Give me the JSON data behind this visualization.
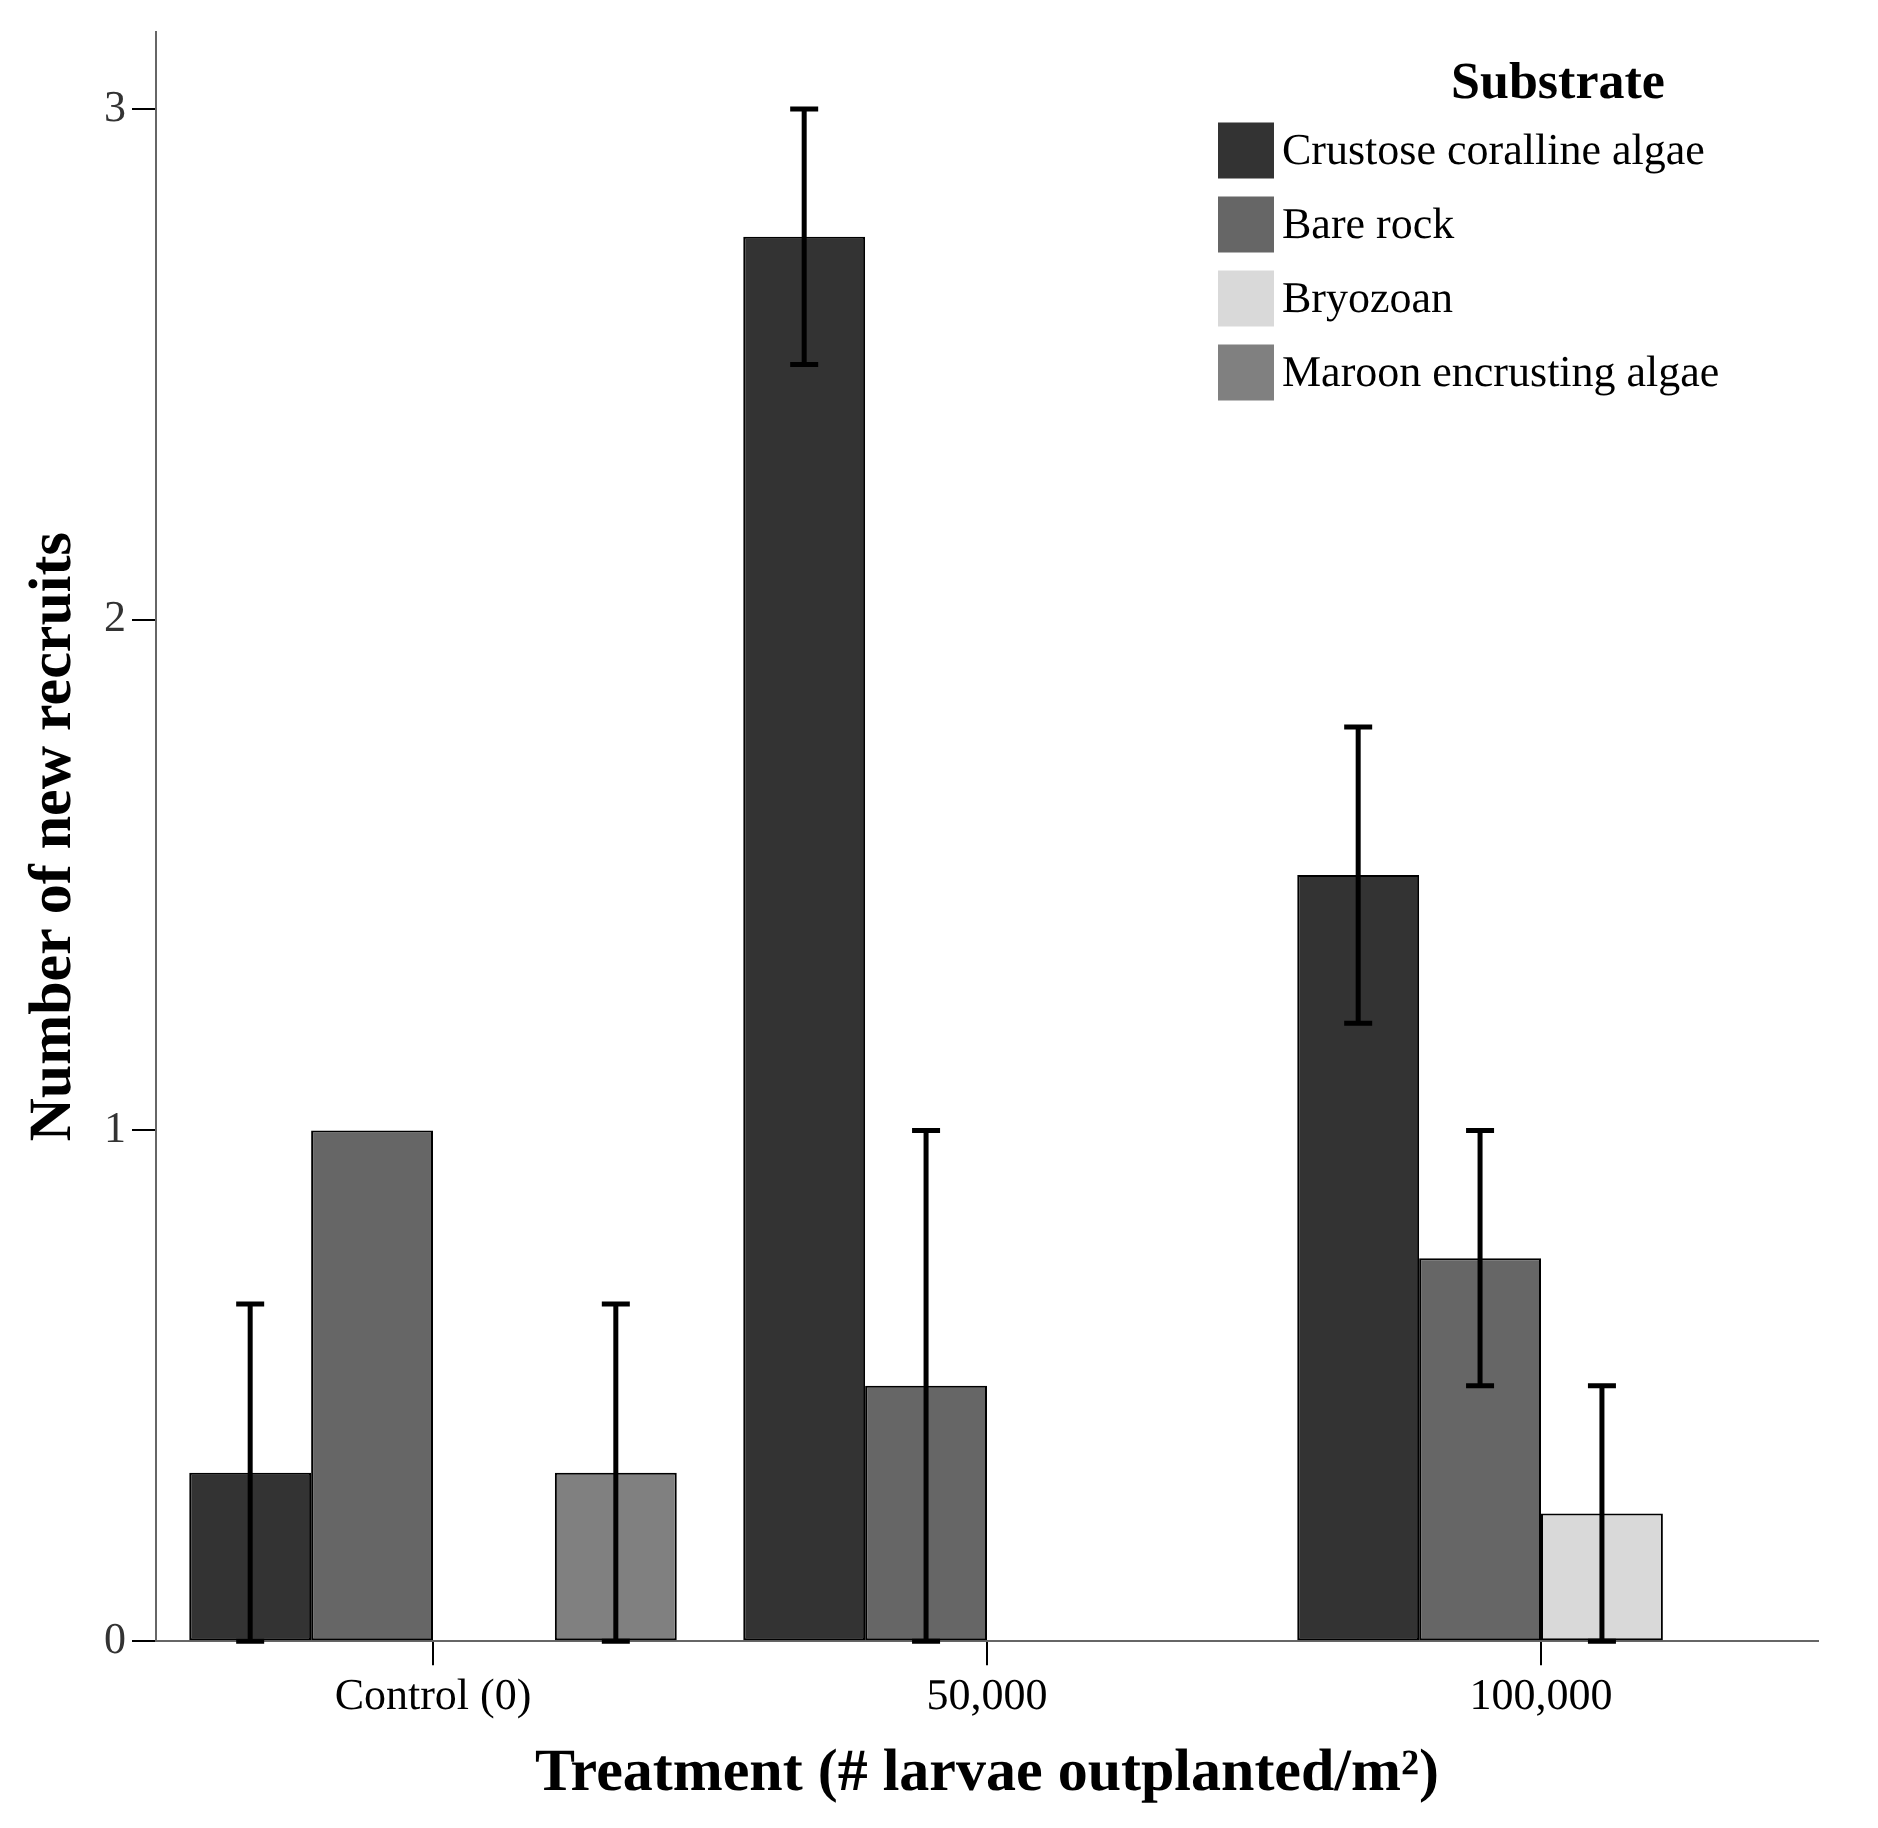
{
  "chart_data": {
    "type": "bar",
    "xlabel": "Treatment (# larvae outplanted/m²)",
    "ylabel": "Number of new recruits",
    "legend_title": "Substrate",
    "legend": "top right",
    "grid": false,
    "categories": [
      "Control (0)",
      "50,000",
      "100,000"
    ],
    "ylim": [
      0,
      3.15
    ],
    "yticks": [
      0,
      1,
      2,
      3
    ],
    "series": [
      {
        "name": "Crustose coralline algae",
        "color": "#333333",
        "values": [
          0.33,
          2.75,
          1.5
        ],
        "errors": [
          0.33,
          0.25,
          0.29
        ]
      },
      {
        "name": "Bare rock",
        "color": "#666666",
        "values": [
          1,
          0.5,
          0.75
        ],
        "errors": [
          null,
          0.5,
          0.25
        ]
      },
      {
        "name": "Bryozoan",
        "color": "#d9d9d9",
        "values": [
          0,
          0,
          0.25
        ],
        "errors": [
          null,
          null,
          0.25
        ]
      },
      {
        "name": "Maroon encrusting algae",
        "color": "#808080",
        "values": [
          0.33,
          0,
          0
        ],
        "errors": [
          0.33,
          null,
          null
        ]
      }
    ]
  }
}
